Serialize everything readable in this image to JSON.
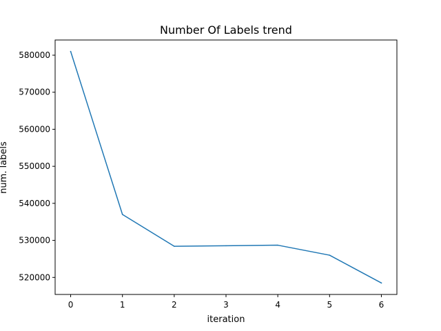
{
  "chart_data": {
    "type": "line",
    "title": "Number Of Labels trend",
    "xlabel": "iteration",
    "ylabel": "num. labels",
    "x": [
      0,
      1,
      2,
      3,
      4,
      5,
      6
    ],
    "series": [
      {
        "values": [
          581000,
          537000,
          528400,
          528550,
          528700,
          526000,
          518500
        ],
        "color": "#1f77b4"
      }
    ],
    "xlim": [
      -0.3,
      6.3
    ],
    "ylim": [
      515400,
      584100
    ],
    "xticks": [
      0,
      1,
      2,
      3,
      4,
      5,
      6
    ],
    "xtick_labels": [
      "0",
      "1",
      "2",
      "3",
      "4",
      "5",
      "6"
    ],
    "yticks": [
      520000,
      530000,
      540000,
      550000,
      560000,
      570000,
      580000
    ],
    "ytick_labels": [
      "520000",
      "530000",
      "540000",
      "550000",
      "560000",
      "570000",
      "580000"
    ],
    "grid": false,
    "legend": "none"
  }
}
